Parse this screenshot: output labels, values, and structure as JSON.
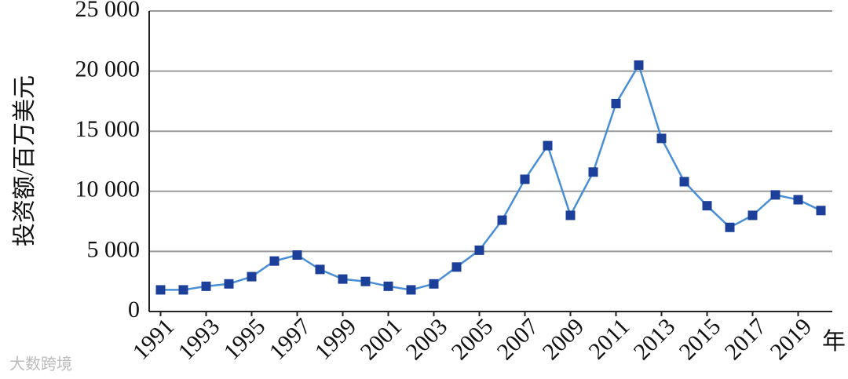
{
  "chart_data": {
    "type": "line",
    "y_label": "投资额/百万美元",
    "x_label": "年",
    "watermark": "大数跨境",
    "x": [
      1991,
      1992,
      1993,
      1994,
      1995,
      1996,
      1997,
      1998,
      1999,
      2000,
      2001,
      2002,
      2003,
      2004,
      2005,
      2006,
      2007,
      2008,
      2009,
      2010,
      2011,
      2012,
      2013,
      2014,
      2015,
      2016,
      2017,
      2018,
      2019,
      2020
    ],
    "series": [
      {
        "color": "#4a8fd6",
        "marker_color": "#1c3f9a",
        "values": [
          1800,
          1800,
          2100,
          2300,
          2900,
          4200,
          4700,
          3500,
          2700,
          2500,
          2100,
          1800,
          2300,
          3700,
          5100,
          7600,
          11000,
          13800,
          8000,
          11600,
          17300,
          20500,
          14400,
          10800,
          8800,
          7000,
          8000,
          9700,
          9300,
          8400
        ]
      }
    ],
    "xlim": [
      1990.5,
      2020.5
    ],
    "xticks": [
      1991,
      1993,
      1995,
      1997,
      1999,
      2001,
      2003,
      2005,
      2007,
      2009,
      2011,
      2013,
      2015,
      2017,
      2019
    ],
    "ylim": [
      0,
      25000
    ],
    "yticks": [
      0,
      {
        "value": 5000,
        "label": "5 000"
      },
      {
        "value": 10000,
        "label": "10 000"
      },
      {
        "value": 15000,
        "label": "15 000"
      },
      {
        "value": 20000,
        "label": "20 000"
      },
      {
        "value": 25000,
        "label": "25 000"
      }
    ],
    "grid": true
  }
}
